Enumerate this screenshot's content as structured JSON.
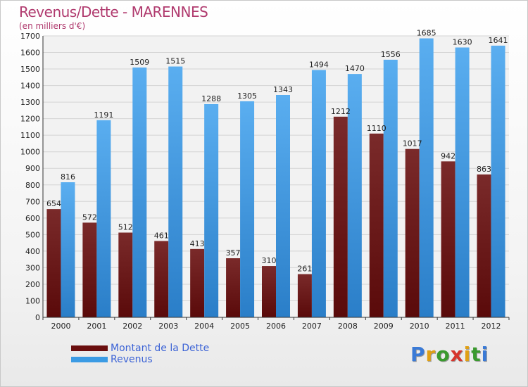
{
  "title": "Revenus/Dette - MARENNES",
  "subtitle": "(en milliers d'€)",
  "colors": {
    "dette": "#8b1c1c",
    "revenus": "#3b9be4"
  },
  "legend": {
    "dette": "Montant de la Dette",
    "revenus": "Revenus"
  },
  "logo": {
    "text": "Proxiti",
    "letter_colors": [
      "#3a7ad6",
      "#e0a014",
      "#3a9a2e",
      "#d6342c",
      "#e0a014",
      "#3a9a2e",
      "#3a7ad6"
    ]
  },
  "chart_data": {
    "type": "bar",
    "categories": [
      "2000",
      "2001",
      "2002",
      "2003",
      "2004",
      "2005",
      "2006",
      "2007",
      "2008",
      "2009",
      "2010",
      "2011",
      "2012"
    ],
    "series": [
      {
        "name": "Montant de la Dette",
        "values": [
          654,
          572,
          512,
          461,
          413,
          357,
          310,
          261,
          1212,
          1110,
          1017,
          942,
          863
        ]
      },
      {
        "name": "Revenus",
        "values": [
          816,
          1191,
          1509,
          1515,
          1288,
          1305,
          1343,
          1494,
          1470,
          1556,
          1685,
          1630,
          1641
        ]
      }
    ],
    "ylim": [
      0,
      1700
    ],
    "yticks": [
      0,
      100,
      200,
      300,
      400,
      500,
      600,
      700,
      800,
      900,
      1000,
      1100,
      1200,
      1300,
      1400,
      1500,
      1600,
      1700
    ],
    "grid": true,
    "legend_position": "bottom-left"
  }
}
